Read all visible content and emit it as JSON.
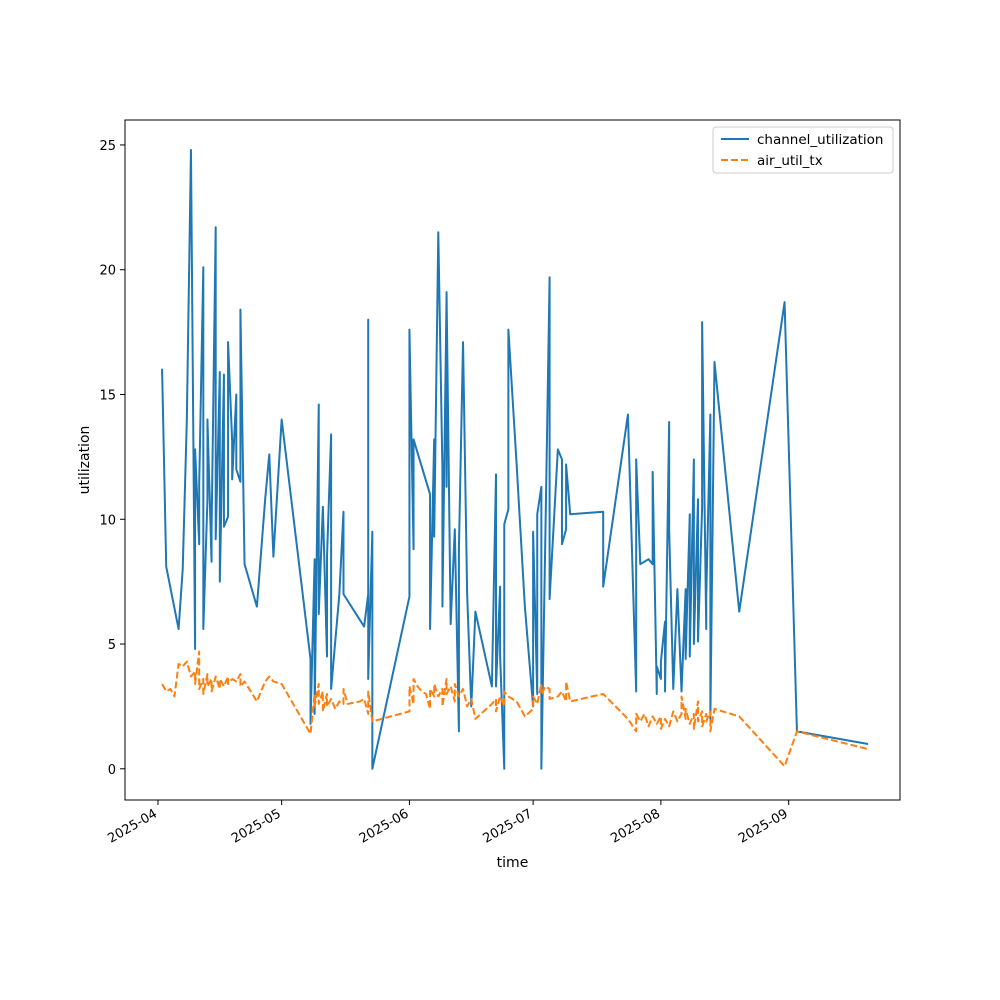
{
  "chart_data": {
    "type": "line",
    "title": "",
    "xlabel": "time",
    "ylabel": "utilization",
    "x_axis_type": "date",
    "x_ticks": [
      "2025-04",
      "2025-05",
      "2025-06",
      "2025-07",
      "2025-08",
      "2025-09"
    ],
    "xlim": [
      "2025-03-24",
      "2025-09-28"
    ],
    "y_ticks": [
      0,
      5,
      10,
      15,
      20,
      25
    ],
    "ylim": [
      -1.25,
      26.0
    ],
    "grid": false,
    "legend_position": "top-right",
    "series": [
      {
        "name": "channel_utilization",
        "color": "#1f77b4",
        "dash": "solid",
        "points": [
          [
            "2025-04-02",
            15.8
          ],
          [
            "2025-04-02",
            16.0
          ],
          [
            "2025-04-03",
            8.1
          ],
          [
            "2025-04-06",
            5.6
          ],
          [
            "2025-04-07",
            8.0
          ],
          [
            "2025-04-08",
            14.0
          ],
          [
            "2025-04-09",
            24.8
          ],
          [
            "2025-04-10",
            4.8
          ],
          [
            "2025-04-10",
            12.8
          ],
          [
            "2025-04-11",
            9.0
          ],
          [
            "2025-04-11",
            11.4
          ],
          [
            "2025-04-12",
            20.1
          ],
          [
            "2025-04-12",
            5.6
          ],
          [
            "2025-04-13",
            10.8
          ],
          [
            "2025-04-13",
            14.0
          ],
          [
            "2025-04-14",
            8.3
          ],
          [
            "2025-04-14",
            9.6
          ],
          [
            "2025-04-15",
            21.7
          ],
          [
            "2025-04-15",
            9.2
          ],
          [
            "2025-04-16",
            15.9
          ],
          [
            "2025-04-16",
            7.5
          ],
          [
            "2025-04-17",
            15.8
          ],
          [
            "2025-04-17",
            9.7
          ],
          [
            "2025-04-18",
            10.1
          ],
          [
            "2025-04-18",
            17.1
          ],
          [
            "2025-04-19",
            13.1
          ],
          [
            "2025-04-19",
            11.6
          ],
          [
            "2025-04-20",
            15.0
          ],
          [
            "2025-04-20",
            12.0
          ],
          [
            "2025-04-21",
            11.5
          ],
          [
            "2025-04-21",
            18.4
          ],
          [
            "2025-04-22",
            8.2
          ],
          [
            "2025-04-25",
            6.5
          ],
          [
            "2025-04-27",
            10.8
          ],
          [
            "2025-04-28",
            12.6
          ],
          [
            "2025-04-29",
            8.5
          ],
          [
            "2025-05-01",
            14.0
          ],
          [
            "2025-05-08",
            4.4
          ],
          [
            "2025-05-08",
            1.8
          ],
          [
            "2025-05-09",
            8.4
          ],
          [
            "2025-05-09",
            2.2
          ],
          [
            "2025-05-10",
            14.6
          ],
          [
            "2025-05-10",
            6.2
          ],
          [
            "2025-05-11",
            10.5
          ],
          [
            "2025-05-12",
            4.5
          ],
          [
            "2025-05-12",
            8.5
          ],
          [
            "2025-05-13",
            13.4
          ],
          [
            "2025-05-13",
            3.8
          ],
          [
            "2025-05-13",
            3.2
          ],
          [
            "2025-05-15",
            7.0
          ],
          [
            "2025-05-16",
            10.3
          ],
          [
            "2025-05-16",
            7.0
          ],
          [
            "2025-05-21",
            5.7
          ],
          [
            "2025-05-22",
            7.0
          ],
          [
            "2025-05-22",
            18.0
          ],
          [
            "2025-05-22",
            3.6
          ],
          [
            "2025-05-23",
            9.5
          ],
          [
            "2025-05-23",
            0.0
          ],
          [
            "2025-06-01",
            6.9
          ],
          [
            "2025-06-01",
            17.6
          ],
          [
            "2025-06-02",
            8.8
          ],
          [
            "2025-06-02",
            13.2
          ],
          [
            "2025-06-06",
            11.0
          ],
          [
            "2025-06-06",
            5.6
          ],
          [
            "2025-06-07",
            13.2
          ],
          [
            "2025-06-07",
            9.3
          ],
          [
            "2025-06-08",
            21.5
          ],
          [
            "2025-06-09",
            12.0
          ],
          [
            "2025-06-09",
            6.5
          ],
          [
            "2025-06-10",
            18.9
          ],
          [
            "2025-06-10",
            11.3
          ],
          [
            "2025-06-10",
            19.1
          ],
          [
            "2025-06-11",
            5.8
          ],
          [
            "2025-06-12",
            9.6
          ],
          [
            "2025-06-13",
            1.5
          ],
          [
            "2025-06-13",
            8.8
          ],
          [
            "2025-06-14",
            17.1
          ],
          [
            "2025-06-15",
            7.0
          ],
          [
            "2025-06-16",
            2.5
          ],
          [
            "2025-06-17",
            6.3
          ],
          [
            "2025-06-21",
            3.3
          ],
          [
            "2025-06-22",
            11.8
          ],
          [
            "2025-06-22",
            3.3
          ],
          [
            "2025-06-23",
            7.3
          ],
          [
            "2025-06-23",
            4.5
          ],
          [
            "2025-06-24",
            0.0
          ],
          [
            "2025-06-24",
            9.8
          ],
          [
            "2025-06-25",
            10.4
          ],
          [
            "2025-06-25",
            17.6
          ],
          [
            "2025-06-27",
            12.2
          ],
          [
            "2025-06-29",
            6.5
          ],
          [
            "2025-07-01",
            2.5
          ],
          [
            "2025-07-01",
            9.5
          ],
          [
            "2025-07-02",
            3.0
          ],
          [
            "2025-07-02",
            10.2
          ],
          [
            "2025-07-03",
            11.3
          ],
          [
            "2025-07-03",
            0.0
          ],
          [
            "2025-07-04",
            9.6
          ],
          [
            "2025-07-05",
            19.7
          ],
          [
            "2025-07-05",
            6.8
          ],
          [
            "2025-07-07",
            12.8
          ],
          [
            "2025-07-08",
            12.4
          ],
          [
            "2025-07-08",
            9.0
          ],
          [
            "2025-07-09",
            9.6
          ],
          [
            "2025-07-09",
            12.2
          ],
          [
            "2025-07-10",
            10.2
          ],
          [
            "2025-07-18",
            10.3
          ],
          [
            "2025-07-18",
            7.3
          ],
          [
            "2025-07-24",
            14.2
          ],
          [
            "2025-07-26",
            3.1
          ],
          [
            "2025-07-26",
            12.4
          ],
          [
            "2025-07-27",
            8.2
          ],
          [
            "2025-07-29",
            8.4
          ],
          [
            "2025-07-30",
            8.2
          ],
          [
            "2025-07-30",
            11.9
          ],
          [
            "2025-07-31",
            3.0
          ],
          [
            "2025-07-31",
            4.1
          ],
          [
            "2025-08-01",
            3.6
          ],
          [
            "2025-08-01",
            4.3
          ],
          [
            "2025-08-02",
            5.9
          ],
          [
            "2025-08-02",
            3.1
          ],
          [
            "2025-08-03",
            13.9
          ],
          [
            "2025-08-03",
            9.6
          ],
          [
            "2025-08-04",
            3.2
          ],
          [
            "2025-08-05",
            7.2
          ],
          [
            "2025-08-06",
            3.1
          ],
          [
            "2025-08-07",
            7.2
          ],
          [
            "2025-08-07",
            4.4
          ],
          [
            "2025-08-08",
            10.2
          ],
          [
            "2025-08-08",
            4.5
          ],
          [
            "2025-08-09",
            12.4
          ],
          [
            "2025-08-09",
            5.0
          ],
          [
            "2025-08-10",
            10.8
          ],
          [
            "2025-08-10",
            5.1
          ],
          [
            "2025-08-11",
            10.5
          ],
          [
            "2025-08-11",
            17.9
          ],
          [
            "2025-08-12",
            5.6
          ],
          [
            "2025-08-12",
            6.9
          ],
          [
            "2025-08-13",
            14.2
          ],
          [
            "2025-08-13",
            6.8
          ],
          [
            "2025-08-13",
            2.0
          ],
          [
            "2025-08-14",
            16.3
          ],
          [
            "2025-08-20",
            6.3
          ],
          [
            "2025-08-31",
            18.7
          ],
          [
            "2025-09-03",
            1.5
          ],
          [
            "2025-09-20",
            1.0
          ]
        ]
      },
      {
        "name": "air_util_tx",
        "color": "#ff7f0e",
        "dash": "dashed",
        "points": [
          [
            "2025-04-02",
            3.4
          ],
          [
            "2025-04-03",
            3.1
          ],
          [
            "2025-04-04",
            3.2
          ],
          [
            "2025-04-05",
            2.9
          ],
          [
            "2025-04-06",
            4.2
          ],
          [
            "2025-04-07",
            4.1
          ],
          [
            "2025-04-08",
            4.3
          ],
          [
            "2025-04-09",
            3.7
          ],
          [
            "2025-04-10",
            3.9
          ],
          [
            "2025-04-10",
            3.4
          ],
          [
            "2025-04-11",
            4.7
          ],
          [
            "2025-04-11",
            3.2
          ],
          [
            "2025-04-12",
            3.6
          ],
          [
            "2025-04-12",
            3.0
          ],
          [
            "2025-04-13",
            3.8
          ],
          [
            "2025-04-13",
            3.3
          ],
          [
            "2025-04-14",
            3.6
          ],
          [
            "2025-04-14",
            3.1
          ],
          [
            "2025-04-15",
            3.7
          ],
          [
            "2025-04-16",
            3.2
          ],
          [
            "2025-04-16",
            3.6
          ],
          [
            "2025-04-17",
            3.3
          ],
          [
            "2025-04-18",
            3.7
          ],
          [
            "2025-04-18",
            3.4
          ],
          [
            "2025-04-19",
            3.6
          ],
          [
            "2025-04-20",
            3.5
          ],
          [
            "2025-04-21",
            3.8
          ],
          [
            "2025-04-21",
            3.3
          ],
          [
            "2025-04-22",
            3.5
          ],
          [
            "2025-04-25",
            2.7
          ],
          [
            "2025-04-27",
            3.5
          ],
          [
            "2025-04-28",
            3.7
          ],
          [
            "2025-04-29",
            3.5
          ],
          [
            "2025-05-01",
            3.4
          ],
          [
            "2025-05-08",
            1.4
          ],
          [
            "2025-05-09",
            3.0
          ],
          [
            "2025-05-09",
            2.5
          ],
          [
            "2025-05-10",
            3.4
          ],
          [
            "2025-05-10",
            2.6
          ],
          [
            "2025-05-11",
            3.1
          ],
          [
            "2025-05-11",
            2.3
          ],
          [
            "2025-05-12",
            3.0
          ],
          [
            "2025-05-12",
            2.5
          ],
          [
            "2025-05-13",
            2.8
          ],
          [
            "2025-05-14",
            2.4
          ],
          [
            "2025-05-15",
            2.7
          ],
          [
            "2025-05-16",
            2.6
          ],
          [
            "2025-05-16",
            3.2
          ],
          [
            "2025-05-17",
            2.6
          ],
          [
            "2025-05-20",
            2.7
          ],
          [
            "2025-05-21",
            2.8
          ],
          [
            "2025-05-22",
            2.2
          ],
          [
            "2025-05-22",
            3.1
          ],
          [
            "2025-05-23",
            1.9
          ],
          [
            "2025-06-01",
            2.3
          ],
          [
            "2025-06-01",
            3.3
          ],
          [
            "2025-06-02",
            2.6
          ],
          [
            "2025-06-02",
            3.6
          ],
          [
            "2025-06-03",
            3.3
          ],
          [
            "2025-06-04",
            3.1
          ],
          [
            "2025-06-05",
            3.0
          ],
          [
            "2025-06-06",
            2.4
          ],
          [
            "2025-06-06",
            3.2
          ],
          [
            "2025-06-07",
            2.9
          ],
          [
            "2025-06-07",
            3.4
          ],
          [
            "2025-06-08",
            2.9
          ],
          [
            "2025-06-09",
            3.2
          ],
          [
            "2025-06-09",
            2.5
          ],
          [
            "2025-06-10",
            3.6
          ],
          [
            "2025-06-10",
            3.0
          ],
          [
            "2025-06-11",
            3.3
          ],
          [
            "2025-06-12",
            2.7
          ],
          [
            "2025-06-12",
            3.4
          ],
          [
            "2025-06-13",
            2.9
          ],
          [
            "2025-06-14",
            3.2
          ],
          [
            "2025-06-15",
            2.5
          ],
          [
            "2025-06-16",
            2.8
          ],
          [
            "2025-06-17",
            2.0
          ],
          [
            "2025-06-21",
            2.6
          ],
          [
            "2025-06-22",
            2.8
          ],
          [
            "2025-06-22",
            2.3
          ],
          [
            "2025-06-23",
            2.9
          ],
          [
            "2025-06-24",
            2.5
          ],
          [
            "2025-06-24",
            3.1
          ],
          [
            "2025-06-25",
            2.9
          ],
          [
            "2025-06-27",
            2.7
          ],
          [
            "2025-06-29",
            2.1
          ],
          [
            "2025-07-01",
            2.4
          ],
          [
            "2025-07-01",
            2.9
          ],
          [
            "2025-07-02",
            2.6
          ],
          [
            "2025-07-03",
            3.4
          ],
          [
            "2025-07-03",
            3.0
          ],
          [
            "2025-07-04",
            3.3
          ],
          [
            "2025-07-05",
            3.2
          ],
          [
            "2025-07-05",
            2.8
          ],
          [
            "2025-07-07",
            2.9
          ],
          [
            "2025-07-08",
            3.1
          ],
          [
            "2025-07-09",
            2.7
          ],
          [
            "2025-07-09",
            3.5
          ],
          [
            "2025-07-10",
            2.7
          ],
          [
            "2025-07-18",
            3.0
          ],
          [
            "2025-07-24",
            2.0
          ],
          [
            "2025-07-26",
            1.5
          ],
          [
            "2025-07-26",
            2.2
          ],
          [
            "2025-07-27",
            1.9
          ],
          [
            "2025-07-28",
            2.2
          ],
          [
            "2025-07-29",
            1.7
          ],
          [
            "2025-07-30",
            2.1
          ],
          [
            "2025-07-31",
            1.8
          ],
          [
            "2025-08-01",
            2.1
          ],
          [
            "2025-08-01",
            1.6
          ],
          [
            "2025-08-02",
            2.0
          ],
          [
            "2025-08-03",
            1.7
          ],
          [
            "2025-08-04",
            2.3
          ],
          [
            "2025-08-05",
            1.9
          ],
          [
            "2025-08-06",
            2.2
          ],
          [
            "2025-08-06",
            2.9
          ],
          [
            "2025-08-07",
            2.0
          ],
          [
            "2025-08-07",
            2.4
          ],
          [
            "2025-08-08",
            1.8
          ],
          [
            "2025-08-09",
            2.2
          ],
          [
            "2025-08-09",
            1.6
          ],
          [
            "2025-08-10",
            2.7
          ],
          [
            "2025-08-10",
            1.9
          ],
          [
            "2025-08-11",
            2.3
          ],
          [
            "2025-08-11",
            1.7
          ],
          [
            "2025-08-12",
            2.2
          ],
          [
            "2025-08-12",
            1.9
          ],
          [
            "2025-08-13",
            2.3
          ],
          [
            "2025-08-13",
            1.5
          ],
          [
            "2025-08-14",
            2.4
          ],
          [
            "2025-08-20",
            2.1
          ],
          [
            "2025-08-31",
            0.1
          ],
          [
            "2025-09-03",
            1.5
          ],
          [
            "2025-09-20",
            0.8
          ]
        ]
      }
    ]
  }
}
